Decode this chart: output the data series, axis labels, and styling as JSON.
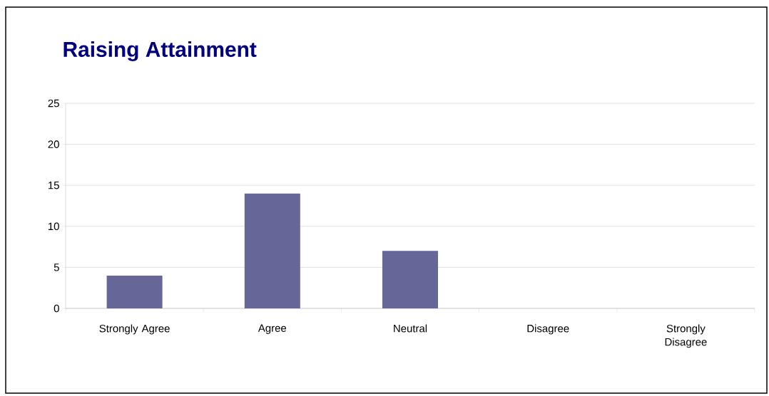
{
  "chart_data": {
    "type": "bar",
    "title": "Raising Attainment",
    "categories": [
      "Strongly Agree",
      "Agree",
      "Neutral",
      "Disagree",
      "Strongly Disagree"
    ],
    "values": [
      4,
      14,
      7,
      0,
      0
    ],
    "color": "#666699",
    "ylim": [
      0,
      25
    ],
    "yticks": [
      0,
      5,
      10,
      15,
      20,
      25
    ],
    "grid": "y"
  }
}
